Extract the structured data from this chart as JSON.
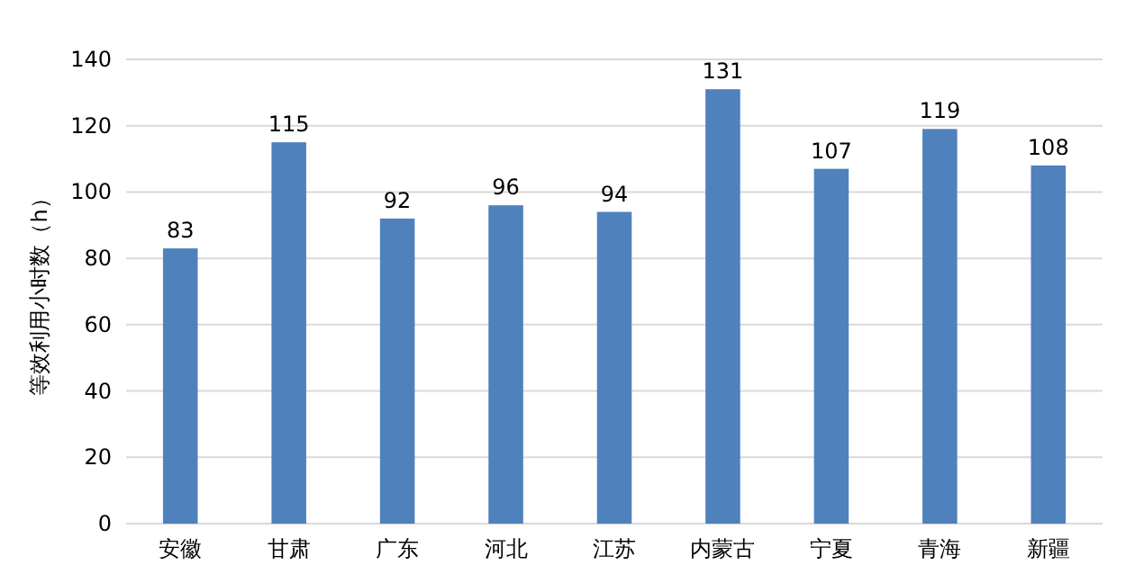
{
  "chart_data": {
    "type": "bar",
    "ylabel": "等效利用小时数（h）",
    "categories": [
      "安徽",
      "甘肃",
      "广东",
      "河北",
      "江苏",
      "内蒙古",
      "宁夏",
      "青海",
      "新疆"
    ],
    "values": [
      83,
      115,
      92,
      96,
      94,
      131,
      107,
      119,
      108
    ],
    "color": "#4f81bd",
    "ylim": [
      0,
      140
    ],
    "yticks": [
      0,
      20,
      40,
      60,
      80,
      100,
      120,
      140
    ],
    "grid": "y",
    "data_labels": true
  }
}
